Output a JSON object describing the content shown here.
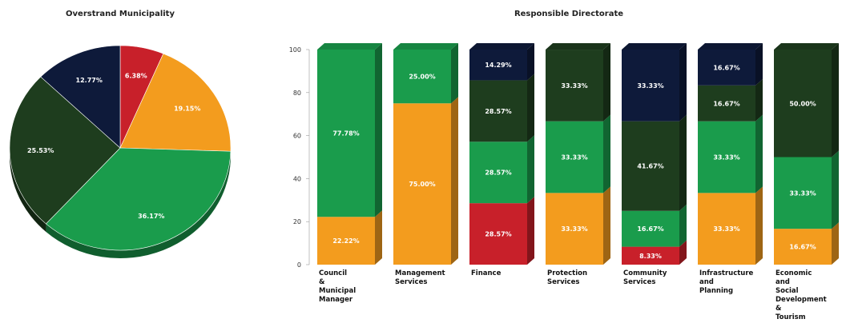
{
  "colors": {
    "red": "#c8202a",
    "orange": "#f39c1e",
    "green": "#1a9c4c",
    "dark_green": "#1e3d1e",
    "navy": "#0e1a3a"
  },
  "chart_data": [
    {
      "type": "pie",
      "title": "Overstrand Municipality",
      "slices": [
        {
          "label": "6.38%",
          "value": 6.38,
          "color": "red"
        },
        {
          "label": "19.15%",
          "value": 19.15,
          "color": "orange"
        },
        {
          "label": "36.17%",
          "value": 36.17,
          "color": "green"
        },
        {
          "label": "25.53%",
          "value": 25.53,
          "color": "dark_green"
        },
        {
          "label": "12.77%",
          "value": 12.77,
          "color": "navy"
        }
      ]
    },
    {
      "type": "bar",
      "stacked": true,
      "title": "Responsible Directorate",
      "ylim": [
        0,
        100
      ],
      "yticks": [
        "0",
        "20",
        "40",
        "60",
        "80",
        "100"
      ],
      "categories": [
        "Council\n&\nMunicipal\nManager",
        "Management\nServices",
        "Finance",
        "Protection\nServices",
        "Community\nServices",
        "Infrastructure\nand\nPlanning",
        "Economic\nand\nSocial\nDevelopment\n&\nTourism"
      ],
      "series": [
        {
          "color": "red",
          "values": [
            0,
            0,
            28.57,
            0,
            8.33,
            0,
            0
          ],
          "labels": [
            "",
            "",
            "28.57%",
            "",
            "8.33%",
            "",
            ""
          ]
        },
        {
          "color": "orange",
          "values": [
            22.22,
            75.0,
            0,
            33.33,
            0,
            33.33,
            16.67
          ],
          "labels": [
            "22.22%",
            "75.00%",
            "",
            "33.33%",
            "",
            "33.33%",
            "16.67%"
          ]
        },
        {
          "color": "green",
          "values": [
            77.78,
            25.0,
            28.57,
            33.33,
            16.67,
            33.33,
            33.33
          ],
          "labels": [
            "77.78%",
            "25.00%",
            "28.57%",
            "33.33%",
            "16.67%",
            "33.33%",
            "33.33%"
          ]
        },
        {
          "color": "dark_green",
          "values": [
            0,
            0,
            28.57,
            33.33,
            41.67,
            16.67,
            50.0
          ],
          "labels": [
            "",
            "",
            "28.57%",
            "33.33%",
            "41.67%",
            "16.67%",
            "50.00%"
          ]
        },
        {
          "color": "navy",
          "values": [
            0,
            0,
            14.29,
            0,
            33.33,
            16.67,
            0
          ],
          "labels": [
            "",
            "",
            "14.29%",
            "",
            "33.33%",
            "16.67%",
            ""
          ]
        }
      ]
    }
  ]
}
